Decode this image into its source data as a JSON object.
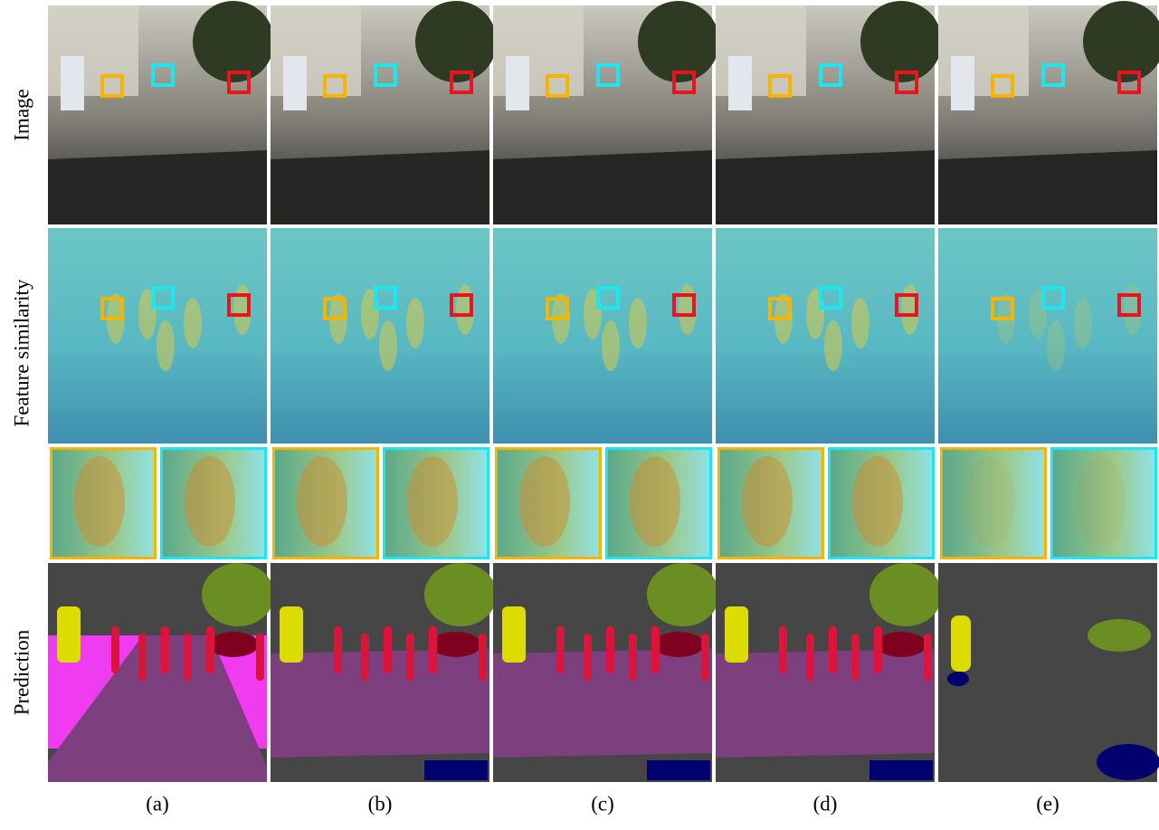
{
  "row_labels": [
    "Image",
    "Feature similarity",
    "Prediction"
  ],
  "column_labels": [
    "(a)",
    "(b)",
    "(c)",
    "(d)",
    "(e)"
  ]
}
